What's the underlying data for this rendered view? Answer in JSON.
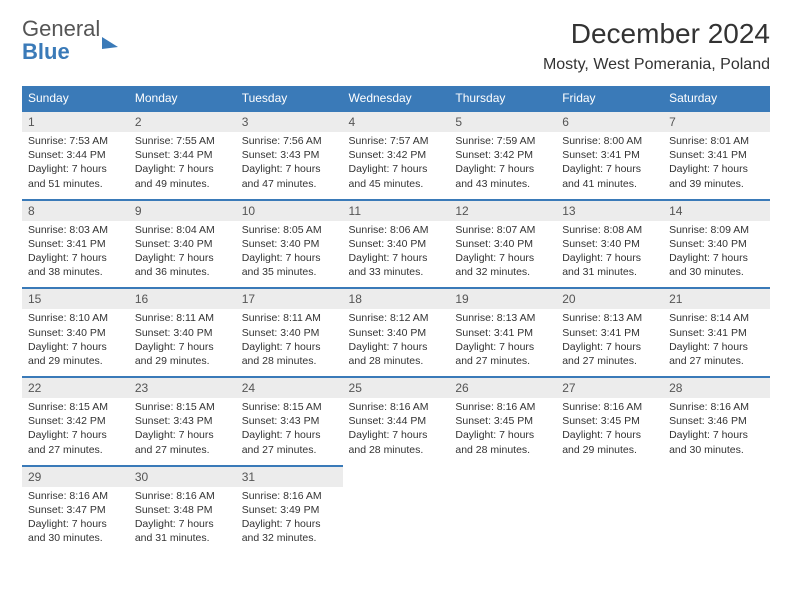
{
  "logo": {
    "general": "General",
    "blue": "Blue"
  },
  "title": "December 2024",
  "location": "Mosty, West Pomerania, Poland",
  "colors": {
    "header_bg": "#3a7ab8",
    "header_text": "#ffffff",
    "dayrow_bg": "#ececec",
    "border": "#3a7ab8",
    "text": "#333333"
  },
  "day_headers": [
    "Sunday",
    "Monday",
    "Tuesday",
    "Wednesday",
    "Thursday",
    "Friday",
    "Saturday"
  ],
  "weeks": [
    [
      {
        "n": "1",
        "sr": "Sunrise: 7:53 AM",
        "ss": "Sunset: 3:44 PM",
        "d1": "Daylight: 7 hours",
        "d2": "and 51 minutes."
      },
      {
        "n": "2",
        "sr": "Sunrise: 7:55 AM",
        "ss": "Sunset: 3:44 PM",
        "d1": "Daylight: 7 hours",
        "d2": "and 49 minutes."
      },
      {
        "n": "3",
        "sr": "Sunrise: 7:56 AM",
        "ss": "Sunset: 3:43 PM",
        "d1": "Daylight: 7 hours",
        "d2": "and 47 minutes."
      },
      {
        "n": "4",
        "sr": "Sunrise: 7:57 AM",
        "ss": "Sunset: 3:42 PM",
        "d1": "Daylight: 7 hours",
        "d2": "and 45 minutes."
      },
      {
        "n": "5",
        "sr": "Sunrise: 7:59 AM",
        "ss": "Sunset: 3:42 PM",
        "d1": "Daylight: 7 hours",
        "d2": "and 43 minutes."
      },
      {
        "n": "6",
        "sr": "Sunrise: 8:00 AM",
        "ss": "Sunset: 3:41 PM",
        "d1": "Daylight: 7 hours",
        "d2": "and 41 minutes."
      },
      {
        "n": "7",
        "sr": "Sunrise: 8:01 AM",
        "ss": "Sunset: 3:41 PM",
        "d1": "Daylight: 7 hours",
        "d2": "and 39 minutes."
      }
    ],
    [
      {
        "n": "8",
        "sr": "Sunrise: 8:03 AM",
        "ss": "Sunset: 3:41 PM",
        "d1": "Daylight: 7 hours",
        "d2": "and 38 minutes."
      },
      {
        "n": "9",
        "sr": "Sunrise: 8:04 AM",
        "ss": "Sunset: 3:40 PM",
        "d1": "Daylight: 7 hours",
        "d2": "and 36 minutes."
      },
      {
        "n": "10",
        "sr": "Sunrise: 8:05 AM",
        "ss": "Sunset: 3:40 PM",
        "d1": "Daylight: 7 hours",
        "d2": "and 35 minutes."
      },
      {
        "n": "11",
        "sr": "Sunrise: 8:06 AM",
        "ss": "Sunset: 3:40 PM",
        "d1": "Daylight: 7 hours",
        "d2": "and 33 minutes."
      },
      {
        "n": "12",
        "sr": "Sunrise: 8:07 AM",
        "ss": "Sunset: 3:40 PM",
        "d1": "Daylight: 7 hours",
        "d2": "and 32 minutes."
      },
      {
        "n": "13",
        "sr": "Sunrise: 8:08 AM",
        "ss": "Sunset: 3:40 PM",
        "d1": "Daylight: 7 hours",
        "d2": "and 31 minutes."
      },
      {
        "n": "14",
        "sr": "Sunrise: 8:09 AM",
        "ss": "Sunset: 3:40 PM",
        "d1": "Daylight: 7 hours",
        "d2": "and 30 minutes."
      }
    ],
    [
      {
        "n": "15",
        "sr": "Sunrise: 8:10 AM",
        "ss": "Sunset: 3:40 PM",
        "d1": "Daylight: 7 hours",
        "d2": "and 29 minutes."
      },
      {
        "n": "16",
        "sr": "Sunrise: 8:11 AM",
        "ss": "Sunset: 3:40 PM",
        "d1": "Daylight: 7 hours",
        "d2": "and 29 minutes."
      },
      {
        "n": "17",
        "sr": "Sunrise: 8:11 AM",
        "ss": "Sunset: 3:40 PM",
        "d1": "Daylight: 7 hours",
        "d2": "and 28 minutes."
      },
      {
        "n": "18",
        "sr": "Sunrise: 8:12 AM",
        "ss": "Sunset: 3:40 PM",
        "d1": "Daylight: 7 hours",
        "d2": "and 28 minutes."
      },
      {
        "n": "19",
        "sr": "Sunrise: 8:13 AM",
        "ss": "Sunset: 3:41 PM",
        "d1": "Daylight: 7 hours",
        "d2": "and 27 minutes."
      },
      {
        "n": "20",
        "sr": "Sunrise: 8:13 AM",
        "ss": "Sunset: 3:41 PM",
        "d1": "Daylight: 7 hours",
        "d2": "and 27 minutes."
      },
      {
        "n": "21",
        "sr": "Sunrise: 8:14 AM",
        "ss": "Sunset: 3:41 PM",
        "d1": "Daylight: 7 hours",
        "d2": "and 27 minutes."
      }
    ],
    [
      {
        "n": "22",
        "sr": "Sunrise: 8:15 AM",
        "ss": "Sunset: 3:42 PM",
        "d1": "Daylight: 7 hours",
        "d2": "and 27 minutes."
      },
      {
        "n": "23",
        "sr": "Sunrise: 8:15 AM",
        "ss": "Sunset: 3:43 PM",
        "d1": "Daylight: 7 hours",
        "d2": "and 27 minutes."
      },
      {
        "n": "24",
        "sr": "Sunrise: 8:15 AM",
        "ss": "Sunset: 3:43 PM",
        "d1": "Daylight: 7 hours",
        "d2": "and 27 minutes."
      },
      {
        "n": "25",
        "sr": "Sunrise: 8:16 AM",
        "ss": "Sunset: 3:44 PM",
        "d1": "Daylight: 7 hours",
        "d2": "and 28 minutes."
      },
      {
        "n": "26",
        "sr": "Sunrise: 8:16 AM",
        "ss": "Sunset: 3:45 PM",
        "d1": "Daylight: 7 hours",
        "d2": "and 28 minutes."
      },
      {
        "n": "27",
        "sr": "Sunrise: 8:16 AM",
        "ss": "Sunset: 3:45 PM",
        "d1": "Daylight: 7 hours",
        "d2": "and 29 minutes."
      },
      {
        "n": "28",
        "sr": "Sunrise: 8:16 AM",
        "ss": "Sunset: 3:46 PM",
        "d1": "Daylight: 7 hours",
        "d2": "and 30 minutes."
      }
    ],
    [
      {
        "n": "29",
        "sr": "Sunrise: 8:16 AM",
        "ss": "Sunset: 3:47 PM",
        "d1": "Daylight: 7 hours",
        "d2": "and 30 minutes."
      },
      {
        "n": "30",
        "sr": "Sunrise: 8:16 AM",
        "ss": "Sunset: 3:48 PM",
        "d1": "Daylight: 7 hours",
        "d2": "and 31 minutes."
      },
      {
        "n": "31",
        "sr": "Sunrise: 8:16 AM",
        "ss": "Sunset: 3:49 PM",
        "d1": "Daylight: 7 hours",
        "d2": "and 32 minutes."
      },
      null,
      null,
      null,
      null
    ]
  ]
}
